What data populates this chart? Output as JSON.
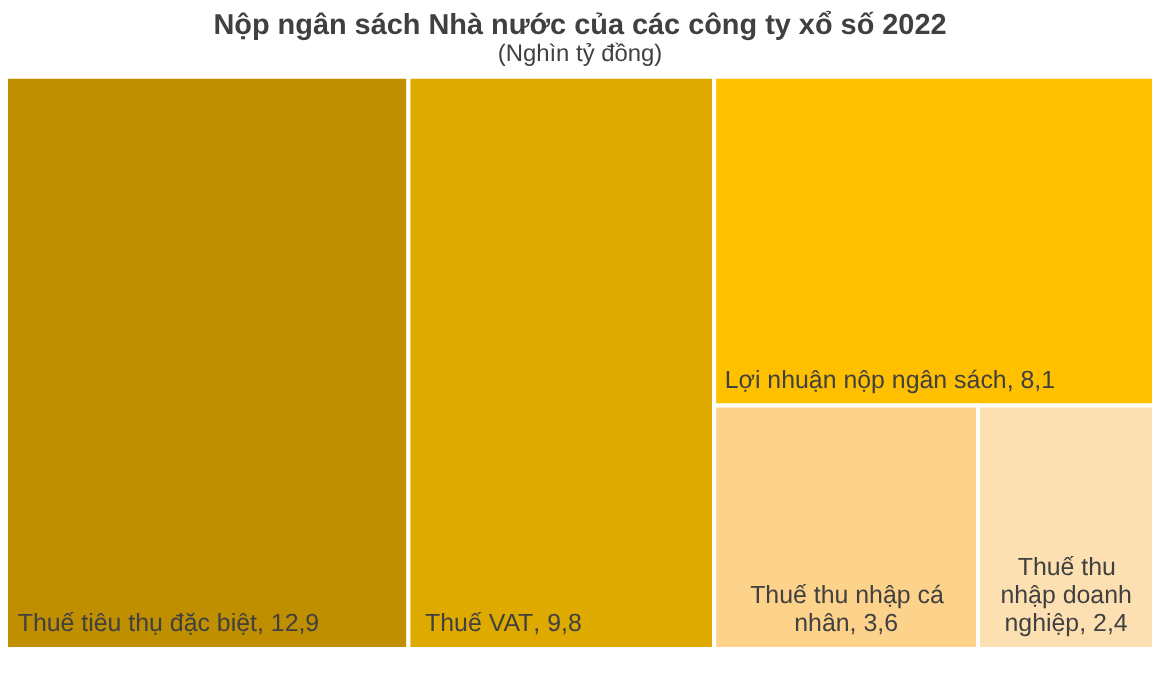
{
  "chart_data": {
    "type": "other",
    "title": "Nộp ngân sách Nhà nước của các công ty xổ số 2022",
    "subtitle": "(Nghìn tỷ đồng)",
    "categories": [
      "Thuế tiêu thụ đặc biệt",
      "Thuế VAT",
      "Lợi nhuận nộp ngân sách",
      "Thuế thu nhập cá nhân",
      "Thuế thu nhập doanh nghiệp"
    ],
    "values": [
      12.9,
      9.8,
      8.1,
      3.6,
      2.4
    ],
    "value_labels": [
      "12,9",
      "9,8",
      "8,1",
      "3,6",
      "2,4"
    ],
    "annotations": [
      ","
    ],
    "colors": [
      "#bf8f00",
      "#dfaa00",
      "#ffc000",
      "#fdd28a",
      "#fde0b2"
    ]
  }
}
